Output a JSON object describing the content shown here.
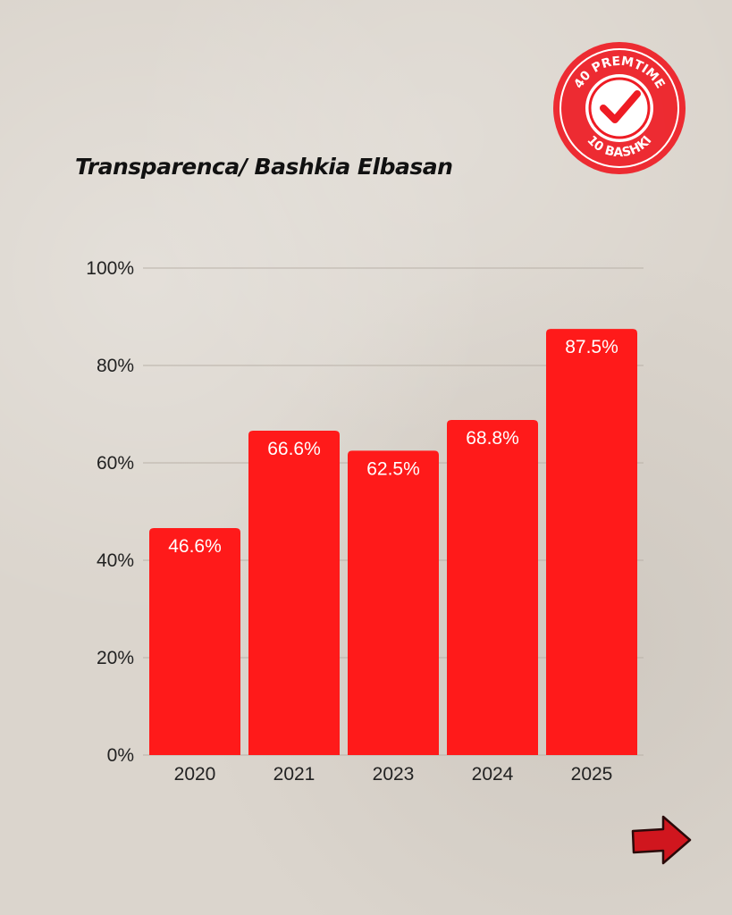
{
  "colors": {
    "bar": "#ff1a1a",
    "badge": "#ee1c24",
    "arrow": "#d0161e",
    "grid": "#b9b1a8"
  },
  "badge": {
    "top_text": "40 PREMTIME",
    "bottom_text": "10 BASHKI",
    "icon": "check-icon"
  },
  "nav": {
    "next_icon": "arrow-right-icon"
  },
  "chart_data": {
    "type": "bar",
    "title": "Transparenca/ Bashkia Elbasan",
    "xlabel": "",
    "ylabel": "",
    "categories": [
      "2020",
      "2021",
      "2023",
      "2024",
      "2025"
    ],
    "values": [
      46.6,
      66.6,
      62.5,
      68.8,
      87.5
    ],
    "data_labels": [
      "46.6%",
      "66.6%",
      "62.5%",
      "68.8%",
      "87.5%"
    ],
    "ylim": [
      0,
      100
    ],
    "yticks": [
      0,
      20,
      40,
      60,
      80,
      100
    ],
    "ytick_labels": [
      "0%",
      "20%",
      "40%",
      "60%",
      "80%",
      "100%"
    ],
    "grid": true,
    "legend": "none"
  }
}
